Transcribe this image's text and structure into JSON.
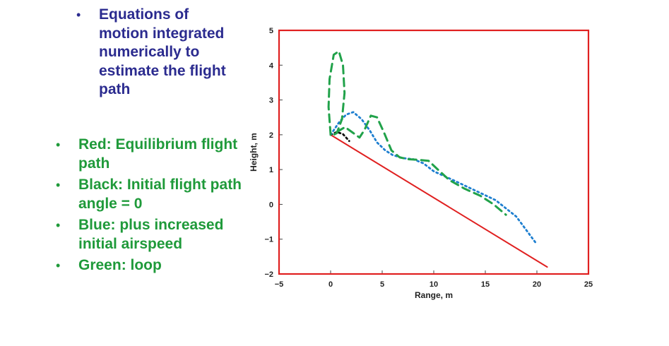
{
  "bullets_top": [
    "Equations of motion integrated numerically to estimate the flight path"
  ],
  "bullets_side": [
    "Red: Equilibrium flight path",
    "Black: Initial flight path angle = 0",
    "Blue: plus increased initial airspeed",
    "Green: loop"
  ],
  "bullet_symbol": "•",
  "colors": {
    "top_text": "#2b2b8f",
    "side_text": "#1f9a3a",
    "frame": "#e02020",
    "red": "#e02020",
    "black": "#111111",
    "blue": "#1e7fd0",
    "green": "#21a24a"
  },
  "chart_data": {
    "type": "line",
    "title": "",
    "xlabel": "Range, m",
    "ylabel": "Height, m",
    "xlim": [
      -5,
      25
    ],
    "ylim": [
      -2,
      5
    ],
    "xticks": [
      -5,
      0,
      5,
      10,
      15,
      20,
      25
    ],
    "yticks": [
      -2,
      -1,
      0,
      1,
      2,
      3,
      4,
      5
    ],
    "xtick_labels": [
      "−5",
      "0",
      "5",
      "10",
      "15",
      "20",
      "25"
    ],
    "ytick_labels": [
      "−2",
      "−1",
      "0",
      "1",
      "2",
      "3",
      "4",
      "5"
    ],
    "grid": false,
    "series": [
      {
        "color": "red",
        "style": "solid",
        "x": [
          0,
          21
        ],
        "y": [
          2,
          -1.8
        ]
      },
      {
        "color": "black",
        "style": "dotted",
        "x": [
          0,
          0.6,
          1.2,
          1.8
        ],
        "y": [
          2,
          2.08,
          2.02,
          1.82
        ]
      },
      {
        "color": "blue",
        "style": "dotted",
        "x": [
          0,
          0.8,
          1.5,
          2.2,
          3.0,
          3.8,
          4.5,
          5.3,
          6.0,
          7.0,
          8.0,
          9.0,
          10.0,
          12.0,
          14.0,
          16.0,
          18.0,
          20.0
        ],
        "y": [
          2,
          2.35,
          2.58,
          2.65,
          2.45,
          2.12,
          1.78,
          1.55,
          1.42,
          1.33,
          1.3,
          1.18,
          0.95,
          0.68,
          0.4,
          0.12,
          -0.35,
          -1.15
        ]
      },
      {
        "color": "green",
        "style": "dashed",
        "x": [
          0,
          -0.2,
          -0.1,
          0.3,
          0.8,
          1.2,
          1.35,
          1.1,
          0.6,
          0.3,
          0.6,
          1.4,
          2.2,
          2.8,
          3.3,
          3.9,
          4.5,
          5.2,
          5.9,
          6.7,
          7.5,
          8.5,
          9.5,
          10.4,
          11.5,
          13.0,
          14.5,
          15.8,
          17.0
        ],
        "y": [
          2,
          2.8,
          3.6,
          4.3,
          4.4,
          4.0,
          3.2,
          2.45,
          2.05,
          2.0,
          2.08,
          2.22,
          2.05,
          1.92,
          2.15,
          2.55,
          2.5,
          2.05,
          1.55,
          1.35,
          1.3,
          1.28,
          1.25,
          1.0,
          0.7,
          0.45,
          0.25,
          0.0,
          -0.3
        ]
      }
    ]
  }
}
